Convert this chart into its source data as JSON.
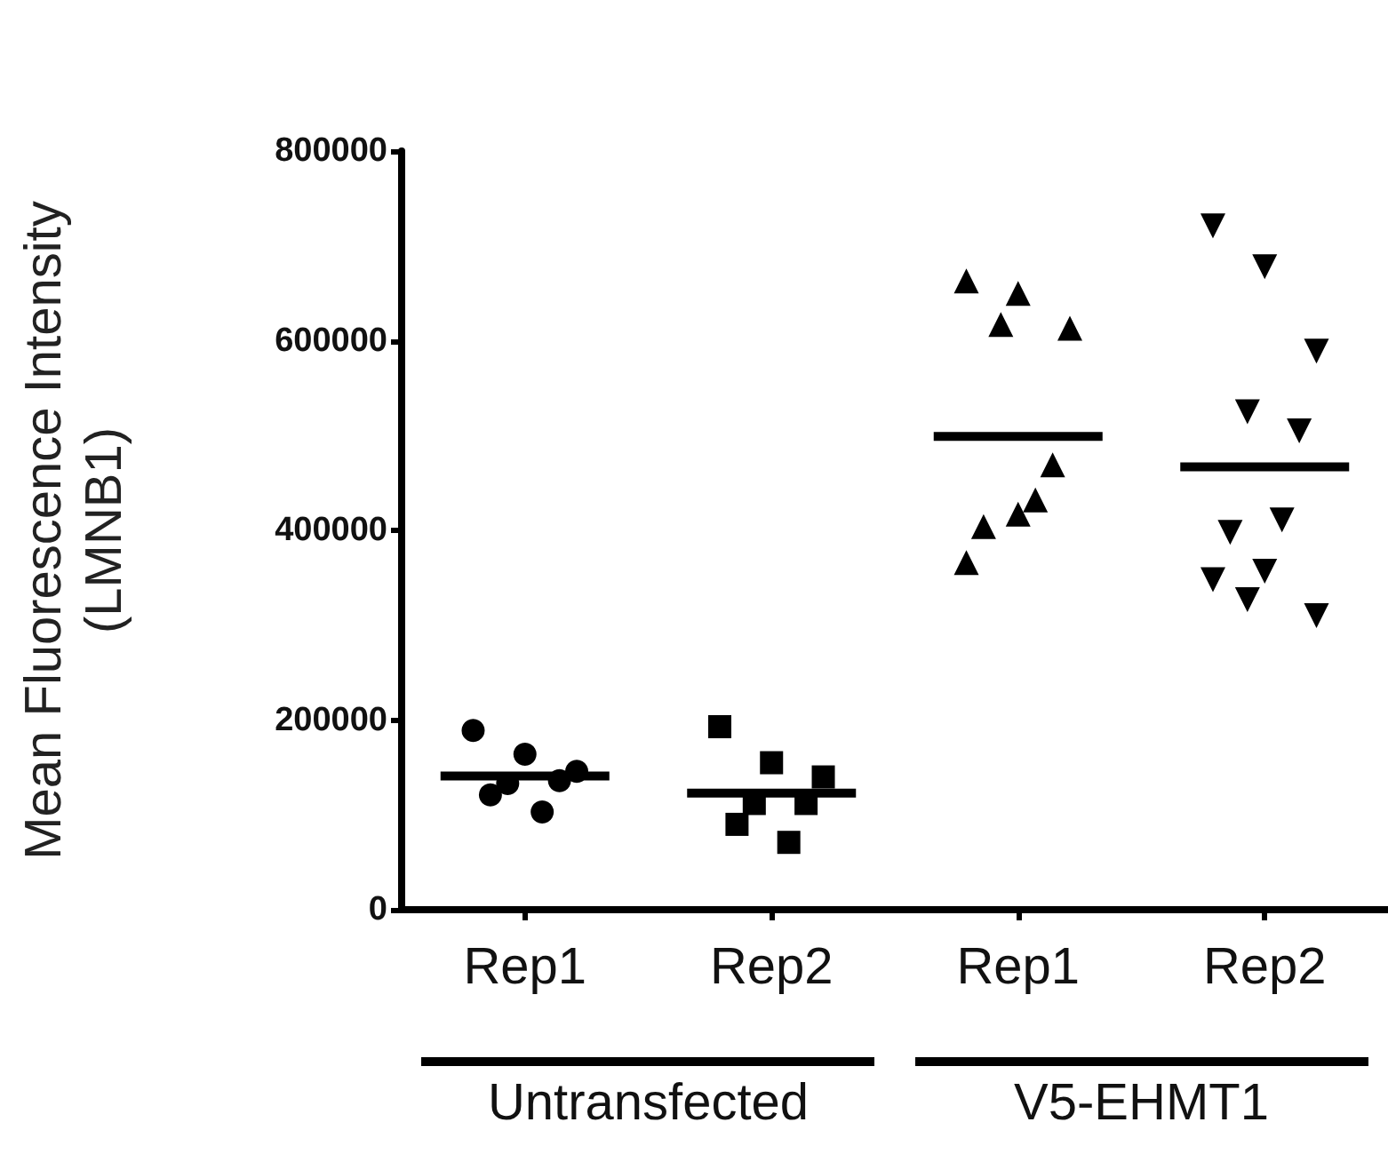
{
  "chart_data": {
    "type": "scatter",
    "ylabel": "Mean Fluorescence Intensity\n(LMNB1)",
    "categories": [
      "Rep1",
      "Rep2",
      "Rep1",
      "Rep2"
    ],
    "series": [
      {
        "marker": "circle",
        "color": "#000000",
        "values": [
          189000,
          null,
          null,
          null
        ]
      },
      {
        "marker": "circle",
        "color": "#000000",
        "values": [
          164000,
          null,
          null,
          null
        ]
      },
      {
        "marker": "circle",
        "color": "#000000",
        "values": [
          146000,
          null,
          null,
          null
        ]
      },
      {
        "marker": "circle",
        "color": "#000000",
        "values": [
          133000,
          null,
          null,
          null
        ]
      },
      {
        "marker": "circle",
        "color": "#000000",
        "values": [
          136000,
          null,
          null,
          null
        ]
      },
      {
        "marker": "circle",
        "color": "#000000",
        "values": [
          121000,
          null,
          null,
          null
        ]
      },
      {
        "marker": "circle",
        "color": "#000000",
        "values": [
          103000,
          null,
          null,
          null
        ]
      },
      {
        "marker": "square",
        "color": "#000000",
        "values": [
          null,
          193000,
          null,
          null
        ]
      },
      {
        "marker": "square",
        "color": "#000000",
        "values": [
          null,
          155000,
          null,
          null
        ]
      },
      {
        "marker": "square",
        "color": "#000000",
        "values": [
          null,
          140000,
          null,
          null
        ]
      },
      {
        "marker": "square",
        "color": "#000000",
        "values": [
          null,
          112000,
          null,
          null
        ]
      },
      {
        "marker": "square",
        "color": "#000000",
        "values": [
          null,
          112000,
          null,
          null
        ]
      },
      {
        "marker": "square",
        "color": "#000000",
        "values": [
          null,
          90000,
          null,
          null
        ]
      },
      {
        "marker": "square",
        "color": "#000000",
        "values": [
          null,
          71000,
          null,
          null
        ]
      },
      {
        "marker": "triangle",
        "color": "#000000",
        "values": [
          null,
          null,
          663000,
          null
        ]
      },
      {
        "marker": "triangle",
        "color": "#000000",
        "values": [
          null,
          null,
          650000,
          null
        ]
      },
      {
        "marker": "triangle",
        "color": "#000000",
        "values": [
          null,
          null,
          613000,
          null
        ]
      },
      {
        "marker": "triangle",
        "color": "#000000",
        "values": [
          null,
          null,
          617000,
          null
        ]
      },
      {
        "marker": "triangle",
        "color": "#000000",
        "values": [
          null,
          null,
          469000,
          null
        ]
      },
      {
        "marker": "triangle",
        "color": "#000000",
        "values": [
          null,
          null,
          404000,
          null
        ]
      },
      {
        "marker": "triangle",
        "color": "#000000",
        "values": [
          null,
          null,
          432000,
          null
        ]
      },
      {
        "marker": "triangle",
        "color": "#000000",
        "values": [
          null,
          null,
          366000,
          null
        ]
      },
      {
        "marker": "triangle",
        "color": "#000000",
        "values": [
          null,
          null,
          417000,
          null
        ]
      },
      {
        "marker": "triangle_down",
        "color": "#000000",
        "values": [
          null,
          null,
          null,
          721000
        ]
      },
      {
        "marker": "triangle_down",
        "color": "#000000",
        "values": [
          null,
          null,
          null,
          678000
        ]
      },
      {
        "marker": "triangle_down",
        "color": "#000000",
        "values": [
          null,
          null,
          null,
          589000
        ]
      },
      {
        "marker": "triangle_down",
        "color": "#000000",
        "values": [
          null,
          null,
          null,
          525000
        ]
      },
      {
        "marker": "triangle_down",
        "color": "#000000",
        "values": [
          null,
          null,
          null,
          505000
        ]
      },
      {
        "marker": "triangle_down",
        "color": "#000000",
        "values": [
          null,
          null,
          null,
          398000
        ]
      },
      {
        "marker": "triangle_down",
        "color": "#000000",
        "values": [
          null,
          null,
          null,
          411000
        ]
      },
      {
        "marker": "triangle_down",
        "color": "#000000",
        "values": [
          null,
          null,
          null,
          348000
        ]
      },
      {
        "marker": "triangle_down",
        "color": "#000000",
        "values": [
          null,
          null,
          null,
          357000
        ]
      },
      {
        "marker": "triangle_down",
        "color": "#000000",
        "values": [
          null,
          null,
          null,
          310000
        ]
      },
      {
        "marker": "triangle_down",
        "color": "#000000",
        "values": [
          null,
          null,
          null,
          327000
        ]
      },
      {
        "type": "box",
        "color": "#000000",
        "boxes": [
          {
            "low": 141000,
            "q1": 141000,
            "median": 141000,
            "q3": 141000,
            "high": 141000
          },
          {
            "low": 123000,
            "q1": 123000,
            "median": 123000,
            "q3": 123000,
            "high": 123000
          },
          {
            "low": 499000,
            "q1": 499000,
            "median": 499000,
            "q3": 499000,
            "high": 499000
          },
          {
            "low": 467000,
            "q1": 467000,
            "median": 467000,
            "q3": 467000,
            "high": 467000
          }
        ]
      }
    ],
    "annotations": [
      "Untransfected",
      "V5-EHMT1"
    ],
    "ylim": [
      0,
      800000
    ],
    "yticks": [
      0,
      200000,
      400000,
      600000,
      800000
    ],
    "grid": false
  }
}
